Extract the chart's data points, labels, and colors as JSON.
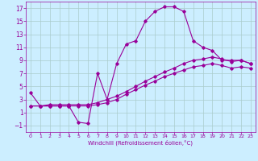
{
  "xlabel": "Windchill (Refroidissement éolien,°C)",
  "line_color": "#990099",
  "bg_color": "#cceeff",
  "grid_color": "#aacccc",
  "xlim": [
    -0.5,
    23.5
  ],
  "ylim": [
    -2,
    18
  ],
  "xticks": [
    0,
    1,
    2,
    3,
    4,
    5,
    6,
    7,
    8,
    9,
    10,
    11,
    12,
    13,
    14,
    15,
    16,
    17,
    18,
    19,
    20,
    21,
    22,
    23
  ],
  "yticks": [
    -1,
    1,
    3,
    5,
    7,
    9,
    11,
    13,
    15,
    17
  ],
  "series1": {
    "x": [
      0,
      1,
      2,
      3,
      4,
      5,
      6,
      7,
      8,
      9,
      10,
      11,
      12,
      13,
      14,
      15,
      16,
      17,
      18,
      19,
      20,
      21,
      22,
      23
    ],
    "y": [
      4.0,
      2.0,
      2.0,
      2.0,
      2.0,
      -0.5,
      -0.7,
      7.0,
      3.0,
      8.5,
      11.5,
      12.0,
      15.0,
      16.5,
      17.2,
      17.2,
      16.5,
      12.0,
      11.0,
      10.5,
      9.0,
      9.0,
      9.0,
      8.5
    ]
  },
  "series2": {
    "x": [
      0,
      1,
      2,
      3,
      4,
      5,
      6,
      7,
      8,
      9,
      10,
      11,
      12,
      13,
      14,
      15,
      16,
      17,
      18,
      19,
      20,
      21,
      22,
      23
    ],
    "y": [
      2.0,
      2.0,
      2.2,
      2.2,
      2.2,
      2.2,
      2.2,
      2.5,
      3.0,
      3.5,
      4.2,
      5.0,
      5.8,
      6.5,
      7.2,
      7.8,
      8.5,
      9.0,
      9.2,
      9.5,
      9.2,
      8.8,
      9.0,
      8.5
    ]
  },
  "series3": {
    "x": [
      0,
      1,
      2,
      3,
      4,
      5,
      6,
      7,
      8,
      9,
      10,
      11,
      12,
      13,
      14,
      15,
      16,
      17,
      18,
      19,
      20,
      21,
      22,
      23
    ],
    "y": [
      2.0,
      2.0,
      2.0,
      2.0,
      2.0,
      2.0,
      2.0,
      2.2,
      2.5,
      3.0,
      3.8,
      4.5,
      5.2,
      5.8,
      6.5,
      7.0,
      7.5,
      8.0,
      8.2,
      8.5,
      8.2,
      7.8,
      8.0,
      7.8
    ]
  }
}
